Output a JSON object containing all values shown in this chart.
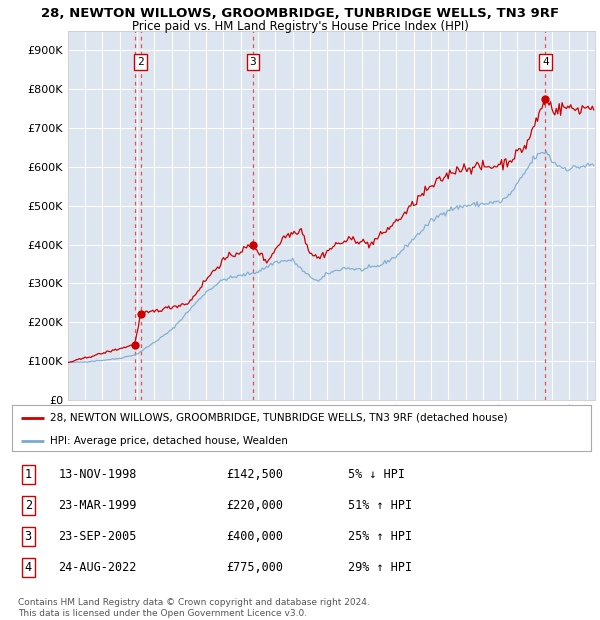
{
  "title1": "28, NEWTON WILLOWS, GROOMBRIDGE, TUNBRIDGE WELLS, TN3 9RF",
  "title2": "Price paid vs. HM Land Registry's House Price Index (HPI)",
  "ylim": [
    0,
    950000
  ],
  "yticks": [
    0,
    100000,
    200000,
    300000,
    400000,
    500000,
    600000,
    700000,
    800000,
    900000
  ],
  "ytick_labels": [
    "£0",
    "£100K",
    "£200K",
    "£300K",
    "£400K",
    "£500K",
    "£600K",
    "£700K",
    "£800K",
    "£900K"
  ],
  "background_color": "#dde6f0",
  "grid_color": "#ffffff",
  "sale_prices": [
    142500,
    220000,
    400000,
    775000
  ],
  "sale_labels": [
    "1",
    "2",
    "3",
    "4"
  ],
  "legend_line1": "28, NEWTON WILLOWS, GROOMBRIDGE, TUNBRIDGE WELLS, TN3 9RF (detached house)",
  "legend_line2": "HPI: Average price, detached house, Wealden",
  "table_rows": [
    [
      "1",
      "13-NOV-1998",
      "£142,500",
      "5% ↓ HPI"
    ],
    [
      "2",
      "23-MAR-1999",
      "£220,000",
      "51% ↑ HPI"
    ],
    [
      "3",
      "23-SEP-2005",
      "£400,000",
      "25% ↑ HPI"
    ],
    [
      "4",
      "24-AUG-2022",
      "£775,000",
      "29% ↑ HPI"
    ]
  ],
  "footnote": "Contains HM Land Registry data © Crown copyright and database right 2024.\nThis data is licensed under the Open Government Licence v3.0.",
  "hpi_color": "#7aaad0",
  "price_color": "#cc0000",
  "sale_marker_color": "#cc0000",
  "vline_color": "#dd4444",
  "xmin": 1995,
  "xmax": 2025.5
}
